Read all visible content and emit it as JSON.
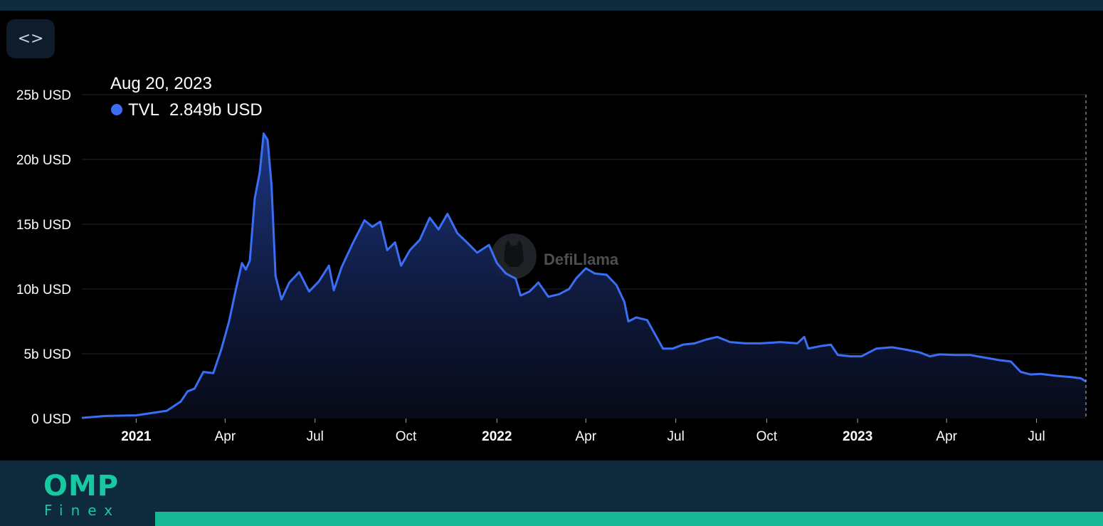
{
  "embed_button": {
    "icon": "code-brackets-icon",
    "glyph": "<>"
  },
  "tooltip": {
    "date": "Aug 20, 2023",
    "series": "TVL",
    "value": "2.849b USD",
    "dot_color": "#3b6ef5"
  },
  "watermark": {
    "text": "DefiLlama"
  },
  "brand": {
    "logo_main": "OMP",
    "logo_sub": "Finex",
    "accent_color": "#17b895"
  },
  "chart_data": {
    "type": "area",
    "line_color": "#3b6ef5",
    "x_range": [
      "2020-11-07",
      "2023-08-20"
    ],
    "y_range": [
      0,
      25
    ],
    "y_ticks": [
      {
        "value": 0,
        "label": "0 USD"
      },
      {
        "value": 5,
        "label": "5b USD"
      },
      {
        "value": 10,
        "label": "10b USD"
      },
      {
        "value": 15,
        "label": "15b USD"
      },
      {
        "value": 20,
        "label": "20b USD"
      },
      {
        "value": 25,
        "label": "25b USD"
      }
    ],
    "x_ticks": [
      {
        "date": "2021-01-01",
        "label": "2021",
        "bold": true
      },
      {
        "date": "2021-04-01",
        "label": "Apr",
        "bold": false
      },
      {
        "date": "2021-07-01",
        "label": "Jul",
        "bold": false
      },
      {
        "date": "2021-10-01",
        "label": "Oct",
        "bold": false
      },
      {
        "date": "2022-01-01",
        "label": "2022",
        "bold": true
      },
      {
        "date": "2022-04-01",
        "label": "Apr",
        "bold": false
      },
      {
        "date": "2022-07-01",
        "label": "Jul",
        "bold": false
      },
      {
        "date": "2022-10-01",
        "label": "Oct",
        "bold": false
      },
      {
        "date": "2023-01-01",
        "label": "2023",
        "bold": true
      },
      {
        "date": "2023-04-01",
        "label": "Apr",
        "bold": false
      },
      {
        "date": "2023-07-01",
        "label": "Jul",
        "bold": false
      }
    ],
    "grid": true,
    "hover_date": "2023-08-20",
    "series": [
      {
        "name": "TVL",
        "unit": "b USD",
        "points": [
          [
            "2020-11-07",
            0.05
          ],
          [
            "2020-12-01",
            0.2
          ],
          [
            "2021-01-01",
            0.25
          ],
          [
            "2021-02-01",
            0.6
          ],
          [
            "2021-02-15",
            1.3
          ],
          [
            "2021-02-22",
            2.1
          ],
          [
            "2021-03-01",
            2.3
          ],
          [
            "2021-03-10",
            3.6
          ],
          [
            "2021-03-20",
            3.5
          ],
          [
            "2021-03-28",
            5.3
          ],
          [
            "2021-04-05",
            7.5
          ],
          [
            "2021-04-12",
            10.0
          ],
          [
            "2021-04-18",
            12.0
          ],
          [
            "2021-04-22",
            11.5
          ],
          [
            "2021-04-26",
            12.2
          ],
          [
            "2021-05-01",
            17.0
          ],
          [
            "2021-05-06",
            19.0
          ],
          [
            "2021-05-10",
            22.0
          ],
          [
            "2021-05-14",
            21.5
          ],
          [
            "2021-05-18",
            18.0
          ],
          [
            "2021-05-22",
            11.0
          ],
          [
            "2021-05-28",
            9.2
          ],
          [
            "2021-06-05",
            10.5
          ],
          [
            "2021-06-15",
            11.3
          ],
          [
            "2021-06-25",
            9.8
          ],
          [
            "2021-07-05",
            10.6
          ],
          [
            "2021-07-15",
            11.8
          ],
          [
            "2021-07-20",
            9.9
          ],
          [
            "2021-07-28",
            11.7
          ],
          [
            "2021-08-08",
            13.5
          ],
          [
            "2021-08-20",
            15.3
          ],
          [
            "2021-08-28",
            14.8
          ],
          [
            "2021-09-05",
            15.2
          ],
          [
            "2021-09-12",
            13.0
          ],
          [
            "2021-09-20",
            13.6
          ],
          [
            "2021-09-26",
            11.8
          ],
          [
            "2021-10-05",
            13.0
          ],
          [
            "2021-10-15",
            13.8
          ],
          [
            "2021-10-25",
            15.5
          ],
          [
            "2021-11-03",
            14.6
          ],
          [
            "2021-11-12",
            15.8
          ],
          [
            "2021-11-22",
            14.3
          ],
          [
            "2021-12-03",
            13.5
          ],
          [
            "2021-12-12",
            12.8
          ],
          [
            "2021-12-24",
            13.4
          ],
          [
            "2022-01-01",
            12.0
          ],
          [
            "2022-01-10",
            11.2
          ],
          [
            "2022-01-20",
            10.8
          ],
          [
            "2022-01-25",
            9.5
          ],
          [
            "2022-02-03",
            9.8
          ],
          [
            "2022-02-12",
            10.5
          ],
          [
            "2022-02-22",
            9.4
          ],
          [
            "2022-03-05",
            9.6
          ],
          [
            "2022-03-15",
            10.0
          ],
          [
            "2022-03-22",
            10.8
          ],
          [
            "2022-04-01",
            11.6
          ],
          [
            "2022-04-10",
            11.2
          ],
          [
            "2022-04-22",
            11.1
          ],
          [
            "2022-05-02",
            10.3
          ],
          [
            "2022-05-10",
            9.0
          ],
          [
            "2022-05-14",
            7.5
          ],
          [
            "2022-05-22",
            7.8
          ],
          [
            "2022-06-02",
            7.6
          ],
          [
            "2022-06-10",
            6.5
          ],
          [
            "2022-06-18",
            5.4
          ],
          [
            "2022-06-28",
            5.4
          ],
          [
            "2022-07-08",
            5.7
          ],
          [
            "2022-07-20",
            5.8
          ],
          [
            "2022-08-01",
            6.1
          ],
          [
            "2022-08-12",
            6.3
          ],
          [
            "2022-08-25",
            5.9
          ],
          [
            "2022-09-10",
            5.8
          ],
          [
            "2022-09-25",
            5.8
          ],
          [
            "2022-10-15",
            5.9
          ],
          [
            "2022-11-01",
            5.8
          ],
          [
            "2022-11-08",
            6.3
          ],
          [
            "2022-11-12",
            5.4
          ],
          [
            "2022-11-25",
            5.6
          ],
          [
            "2022-12-05",
            5.7
          ],
          [
            "2022-12-12",
            4.9
          ],
          [
            "2022-12-25",
            4.8
          ],
          [
            "2023-01-05",
            4.8
          ],
          [
            "2023-01-20",
            5.4
          ],
          [
            "2023-02-05",
            5.5
          ],
          [
            "2023-02-20",
            5.3
          ],
          [
            "2023-03-05",
            5.1
          ],
          [
            "2023-03-15",
            4.8
          ],
          [
            "2023-03-25",
            4.95
          ],
          [
            "2023-04-10",
            4.9
          ],
          [
            "2023-04-25",
            4.9
          ],
          [
            "2023-05-10",
            4.7
          ],
          [
            "2023-05-25",
            4.5
          ],
          [
            "2023-06-05",
            4.4
          ],
          [
            "2023-06-15",
            3.6
          ],
          [
            "2023-06-25",
            3.4
          ],
          [
            "2023-07-05",
            3.45
          ],
          [
            "2023-07-20",
            3.3
          ],
          [
            "2023-08-05",
            3.2
          ],
          [
            "2023-08-15",
            3.1
          ],
          [
            "2023-08-20",
            2.849
          ]
        ]
      }
    ]
  }
}
